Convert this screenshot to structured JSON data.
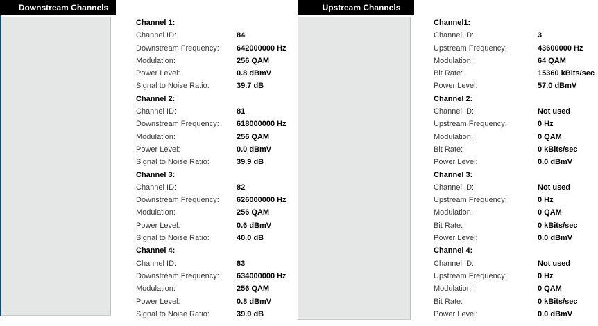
{
  "colors": {
    "header_bg": "#000000",
    "header_text": "#ffffff",
    "panel_gray": "#e5e7e6",
    "panel_edge": "#bcbebd",
    "accent_border": "#1b4a6b"
  },
  "downstream": {
    "title": "Downstream Channels",
    "channels": [
      {
        "header": "Channel 1:",
        "rows": [
          {
            "label": "Channel ID:",
            "value": "84"
          },
          {
            "label": "Downstream Frequency:",
            "value": "642000000 Hz"
          },
          {
            "label": "Modulation:",
            "value": "256 QAM"
          },
          {
            "label": "Power Level:",
            "value": "0.8 dBmV"
          },
          {
            "label": "Signal to Noise Ratio:",
            "value": "39.7 dB"
          }
        ]
      },
      {
        "header": "Channel 2:",
        "rows": [
          {
            "label": "Channel ID:",
            "value": "81"
          },
          {
            "label": "Downstream Frequency:",
            "value": "618000000 Hz"
          },
          {
            "label": "Modulation:",
            "value": "256 QAM"
          },
          {
            "label": "Power Level:",
            "value": "0.0 dBmV"
          },
          {
            "label": "Signal to Noise Ratio:",
            "value": "39.9 dB"
          }
        ]
      },
      {
        "header": "Channel 3:",
        "rows": [
          {
            "label": "Channel ID:",
            "value": "82"
          },
          {
            "label": "Downstream Frequency:",
            "value": "626000000 Hz"
          },
          {
            "label": "Modulation:",
            "value": "256 QAM"
          },
          {
            "label": "Power Level:",
            "value": "0.6 dBmV"
          },
          {
            "label": "Signal to Noise Ratio:",
            "value": "40.0 dB"
          }
        ]
      },
      {
        "header": "Channel 4:",
        "rows": [
          {
            "label": "Channel ID:",
            "value": "83"
          },
          {
            "label": "Downstream Frequency:",
            "value": "634000000 Hz"
          },
          {
            "label": "Modulation:",
            "value": "256 QAM"
          },
          {
            "label": "Power Level:",
            "value": "0.8 dBmV"
          },
          {
            "label": "Signal to Noise Ratio:",
            "value": "39.9 dB"
          }
        ]
      }
    ]
  },
  "upstream": {
    "title": "Upstream Channels",
    "channels": [
      {
        "header": "Channel1:",
        "rows": [
          {
            "label": "Channel ID:",
            "value": "3"
          },
          {
            "label": "Upstream Frequency:",
            "value": "43600000 Hz"
          },
          {
            "label": "Modulation:",
            "value": "64 QAM"
          },
          {
            "label": "Bit Rate:",
            "value": "15360 kBits/sec"
          },
          {
            "label": "Power Level:",
            "value": "57.0 dBmV"
          }
        ]
      },
      {
        "header": "Channel 2:",
        "rows": [
          {
            "label": "Channel ID:",
            "value": "Not used"
          },
          {
            "label": "Upstream Frequency:",
            "value": "0 Hz"
          },
          {
            "label": "Modulation:",
            "value": "0 QAM"
          },
          {
            "label": "Bit Rate:",
            "value": "0 kBits/sec"
          },
          {
            "label": "Power Level:",
            "value": "0.0 dBmV"
          }
        ]
      },
      {
        "header": "Channel 3:",
        "rows": [
          {
            "label": "Channel ID:",
            "value": "Not used"
          },
          {
            "label": "Upstream Frequency:",
            "value": "0 Hz"
          },
          {
            "label": "Modulation:",
            "value": "0 QAM"
          },
          {
            "label": "Bit Rate:",
            "value": "0 kBits/sec"
          },
          {
            "label": "Power Level:",
            "value": "0.0 dBmV"
          }
        ]
      },
      {
        "header": "Channel 4:",
        "rows": [
          {
            "label": "Channel ID:",
            "value": "Not used"
          },
          {
            "label": "Upstream Frequency:",
            "value": "0 Hz"
          },
          {
            "label": "Modulation:",
            "value": "0 QAM"
          },
          {
            "label": "Bit Rate:",
            "value": "0 kBits/sec"
          },
          {
            "label": "Power Level:",
            "value": "0.0 dBmV"
          }
        ]
      }
    ]
  }
}
